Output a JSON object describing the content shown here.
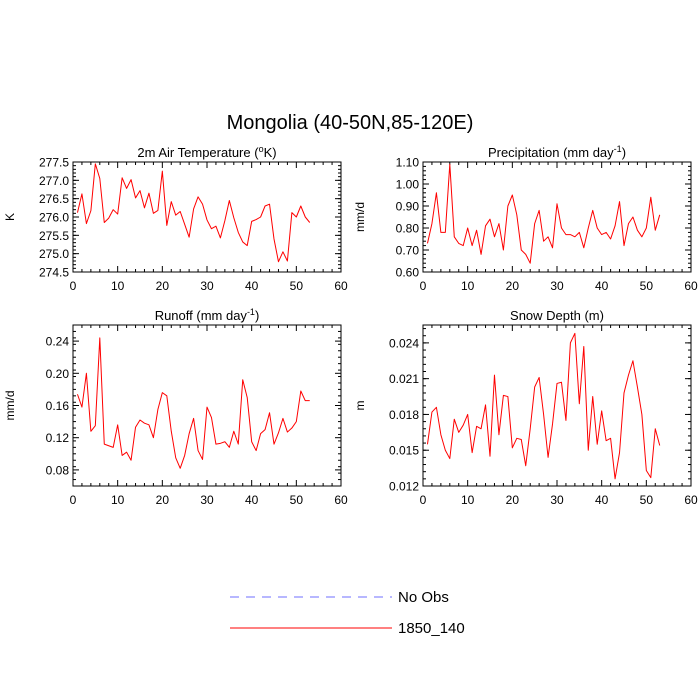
{
  "title": "Mongolia (40-50N,85-120E)",
  "colors": {
    "obs": "#6f6fff",
    "model": "#ff0000",
    "axis": "#000000"
  },
  "legend": [
    {
      "name": "No Obs",
      "style": "dashed",
      "color": "#6f6fff"
    },
    {
      "name": "1850_140",
      "style": "solid",
      "color": "#ff0000"
    }
  ],
  "chart_data": [
    {
      "type": "line",
      "title": "2m Air Temperature (°K)",
      "title_main": "2m Air Temperature (",
      "title_sup": "o",
      "title_tail": "K)",
      "ylabel": "K",
      "xlim": [
        0,
        60
      ],
      "ylim": [
        274.5,
        277.5
      ],
      "xticks": [
        0,
        10,
        20,
        30,
        40,
        50,
        60
      ],
      "yticks": [
        274.5,
        275.0,
        275.5,
        276.0,
        276.5,
        277.0,
        277.5
      ],
      "ytick_labels": [
        "274.5",
        "275.0",
        "275.5",
        "276.0",
        "276.5",
        "277.0",
        "277.5"
      ],
      "series": [
        {
          "name": "1850_140",
          "x": [
            1,
            2,
            3,
            4,
            5,
            6,
            7,
            8,
            9,
            10,
            11,
            12,
            13,
            14,
            15,
            16,
            17,
            18,
            19,
            20,
            21,
            22,
            23,
            24,
            25,
            26,
            27,
            28,
            29,
            30,
            31,
            32,
            33,
            34,
            35,
            36,
            37,
            38,
            39,
            40,
            41,
            42,
            43,
            44,
            45,
            46,
            47,
            48,
            49,
            50,
            51,
            52,
            53
          ],
          "y": [
            276.12,
            276.63,
            275.82,
            276.17,
            277.45,
            277.05,
            275.85,
            275.97,
            276.2,
            276.08,
            277.07,
            276.78,
            277.02,
            276.52,
            276.72,
            276.25,
            276.65,
            276.1,
            276.18,
            277.25,
            275.77,
            276.42,
            276.05,
            276.15,
            275.8,
            275.45,
            276.22,
            276.55,
            276.35,
            275.92,
            275.68,
            275.75,
            275.43,
            275.9,
            276.45,
            275.98,
            275.58,
            275.32,
            275.22,
            275.88,
            275.93,
            276.0,
            276.3,
            276.35,
            275.4,
            274.78,
            275.05,
            274.8,
            276.12,
            276.0,
            276.3,
            276.0,
            275.85
          ]
        }
      ]
    },
    {
      "type": "line",
      "title": "Precipitation (mm day-1)",
      "title_main": "Precipitation (mm day",
      "title_sup": "-1",
      "title_tail": ")",
      "ylabel": "mm/d",
      "xlim": [
        0,
        60
      ],
      "ylim": [
        0.6,
        1.1
      ],
      "xticks": [
        0,
        10,
        20,
        30,
        40,
        50,
        60
      ],
      "yticks": [
        0.6,
        0.7,
        0.8,
        0.9,
        1.0,
        1.1
      ],
      "ytick_labels": [
        "0.60",
        "0.70",
        "0.80",
        "0.90",
        "1.00",
        "1.10"
      ],
      "series": [
        {
          "name": "1850_140",
          "x": [
            1,
            2,
            3,
            4,
            5,
            6,
            7,
            8,
            9,
            10,
            11,
            12,
            13,
            14,
            15,
            16,
            17,
            18,
            19,
            20,
            21,
            22,
            23,
            24,
            25,
            26,
            27,
            28,
            29,
            30,
            31,
            32,
            33,
            34,
            35,
            36,
            37,
            38,
            39,
            40,
            41,
            42,
            43,
            44,
            45,
            46,
            47,
            48,
            49,
            50,
            51,
            52,
            53
          ],
          "y": [
            0.73,
            0.82,
            0.96,
            0.78,
            0.78,
            1.09,
            0.76,
            0.73,
            0.72,
            0.8,
            0.72,
            0.79,
            0.68,
            0.81,
            0.84,
            0.76,
            0.82,
            0.7,
            0.9,
            0.95,
            0.86,
            0.7,
            0.68,
            0.64,
            0.82,
            0.88,
            0.74,
            0.76,
            0.71,
            0.91,
            0.8,
            0.77,
            0.77,
            0.76,
            0.78,
            0.71,
            0.8,
            0.88,
            0.8,
            0.77,
            0.78,
            0.75,
            0.81,
            0.92,
            0.72,
            0.82,
            0.85,
            0.79,
            0.76,
            0.8,
            0.94,
            0.79,
            0.86
          ]
        }
      ]
    },
    {
      "type": "line",
      "title": "Runoff (mm day-1)",
      "title_main": "Runoff (mm day",
      "title_sup": "-1",
      "title_tail": ")",
      "ylabel": "mm/d",
      "xlim": [
        0,
        60
      ],
      "ylim": [
        0.06,
        0.26
      ],
      "xticks": [
        0,
        10,
        20,
        30,
        40,
        50,
        60
      ],
      "yticks": [
        0.08,
        0.12,
        0.16,
        0.2,
        0.24
      ],
      "ytick_labels": [
        "0.08",
        "0.12",
        "0.16",
        "0.20",
        "0.24"
      ],
      "series": [
        {
          "name": "1850_140",
          "x": [
            1,
            2,
            3,
            4,
            5,
            6,
            7,
            8,
            9,
            10,
            11,
            12,
            13,
            14,
            15,
            16,
            17,
            18,
            19,
            20,
            21,
            22,
            23,
            24,
            25,
            26,
            27,
            28,
            29,
            30,
            31,
            32,
            33,
            34,
            35,
            36,
            37,
            38,
            39,
            40,
            41,
            42,
            43,
            44,
            45,
            46,
            47,
            48,
            49,
            50,
            51,
            52,
            53
          ],
          "y": [
            0.174,
            0.158,
            0.2,
            0.128,
            0.135,
            0.244,
            0.112,
            0.11,
            0.108,
            0.136,
            0.098,
            0.102,
            0.092,
            0.133,
            0.142,
            0.138,
            0.136,
            0.12,
            0.155,
            0.176,
            0.172,
            0.128,
            0.095,
            0.082,
            0.098,
            0.125,
            0.144,
            0.104,
            0.093,
            0.158,
            0.145,
            0.112,
            0.113,
            0.115,
            0.108,
            0.128,
            0.112,
            0.192,
            0.17,
            0.115,
            0.104,
            0.125,
            0.13,
            0.151,
            0.112,
            0.126,
            0.144,
            0.127,
            0.132,
            0.14,
            0.178,
            0.166,
            0.166
          ]
        }
      ]
    },
    {
      "type": "line",
      "title": "Snow Depth (m)",
      "ylabel": "m",
      "xlim": [
        0,
        60
      ],
      "ylim": [
        0.012,
        0.0255
      ],
      "xticks": [
        0,
        10,
        20,
        30,
        40,
        50,
        60
      ],
      "yticks": [
        0.012,
        0.015,
        0.018,
        0.021,
        0.024
      ],
      "ytick_labels": [
        "0.012",
        "0.015",
        "0.018",
        "0.021",
        "0.024"
      ],
      "series": [
        {
          "name": "1850_140",
          "x": [
            1,
            2,
            3,
            4,
            5,
            6,
            7,
            8,
            9,
            10,
            11,
            12,
            13,
            14,
            15,
            16,
            17,
            18,
            19,
            20,
            21,
            22,
            23,
            24,
            25,
            26,
            27,
            28,
            29,
            30,
            31,
            32,
            33,
            34,
            35,
            36,
            37,
            38,
            39,
            40,
            41,
            42,
            43,
            44,
            45,
            46,
            47,
            48,
            49,
            50,
            51,
            52,
            53
          ],
          "y": [
            0.0155,
            0.0182,
            0.0186,
            0.0163,
            0.015,
            0.0143,
            0.0176,
            0.0165,
            0.0171,
            0.018,
            0.0148,
            0.017,
            0.0168,
            0.0188,
            0.0145,
            0.0213,
            0.0163,
            0.0196,
            0.0195,
            0.0152,
            0.016,
            0.0159,
            0.0137,
            0.0168,
            0.0203,
            0.0211,
            0.018,
            0.0144,
            0.0172,
            0.0206,
            0.0207,
            0.0175,
            0.024,
            0.0248,
            0.0189,
            0.0237,
            0.015,
            0.0195,
            0.0155,
            0.0183,
            0.0158,
            0.016,
            0.0126,
            0.0148,
            0.0198,
            0.0213,
            0.0225,
            0.0203,
            0.018,
            0.0133,
            0.0127,
            0.0168,
            0.0154
          ]
        }
      ]
    }
  ]
}
